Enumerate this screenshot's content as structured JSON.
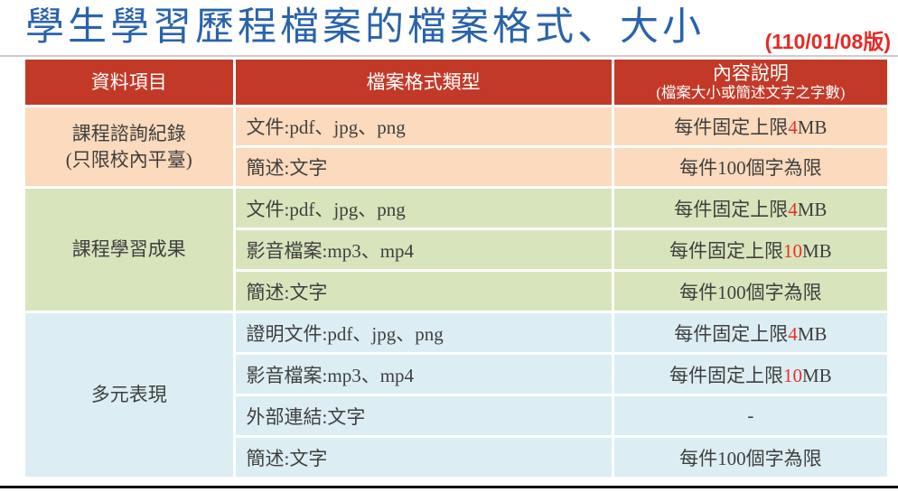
{
  "page": {
    "title": "學生學習歷程檔案的檔案格式、大小",
    "version": "(110/01/08版)"
  },
  "colors": {
    "title_blue": "#2A63AB",
    "version_red": "#E62A25",
    "header_bg": "#C23A27",
    "header_text": "#FFFFFF",
    "peach": "#FBDABD",
    "green": "#D8E4BC",
    "blue": "#DCEEF3",
    "body_text": "#3F3F3F",
    "accent_red": "#E8302A"
  },
  "table": {
    "columns": [
      {
        "label": "資料項目"
      },
      {
        "label": "檔案格式類型"
      },
      {
        "label": "內容說明",
        "sublabel": "(檔案大小或簡述文字之字數)"
      }
    ],
    "groups": [
      {
        "category_lines": [
          "課程諮詢紀錄",
          "(只限校內平臺)"
        ],
        "theme": "peach",
        "rows": [
          {
            "format": "文件:pdf、jpg、png",
            "desc": [
              {
                "text": "每件固定上限"
              },
              {
                "text": "4",
                "red": true
              },
              {
                "text": "MB"
              }
            ]
          },
          {
            "format": "簡述:文字",
            "desc": [
              {
                "text": "每件100個字為限"
              }
            ]
          }
        ]
      },
      {
        "category_lines": [
          "課程學習成果"
        ],
        "theme": "green",
        "rows": [
          {
            "format": "文件:pdf、jpg、png",
            "desc": [
              {
                "text": "每件固定上限"
              },
              {
                "text": "4",
                "red": true
              },
              {
                "text": "MB"
              }
            ]
          },
          {
            "format": "影音檔案:mp3、mp4",
            "desc": [
              {
                "text": "每件固定上限"
              },
              {
                "text": "10",
                "red": true
              },
              {
                "text": "MB"
              }
            ]
          },
          {
            "format": "簡述:文字",
            "desc": [
              {
                "text": "每件100個字為限"
              }
            ]
          }
        ]
      },
      {
        "category_lines": [
          "多元表現"
        ],
        "theme": "blue",
        "rows": [
          {
            "format": "證明文件:pdf、jpg、png",
            "desc": [
              {
                "text": "每件固定上限"
              },
              {
                "text": "4",
                "red": true
              },
              {
                "text": "MB"
              }
            ]
          },
          {
            "format": "影音檔案:mp3、mp4",
            "desc": [
              {
                "text": "每件固定上限"
              },
              {
                "text": "10",
                "red": true
              },
              {
                "text": "MB"
              }
            ]
          },
          {
            "format": "外部連結:文字",
            "desc": [
              {
                "text": "-"
              }
            ]
          },
          {
            "format": "簡述:文字",
            "desc": [
              {
                "text": "每件100個字為限"
              }
            ]
          }
        ]
      }
    ]
  }
}
